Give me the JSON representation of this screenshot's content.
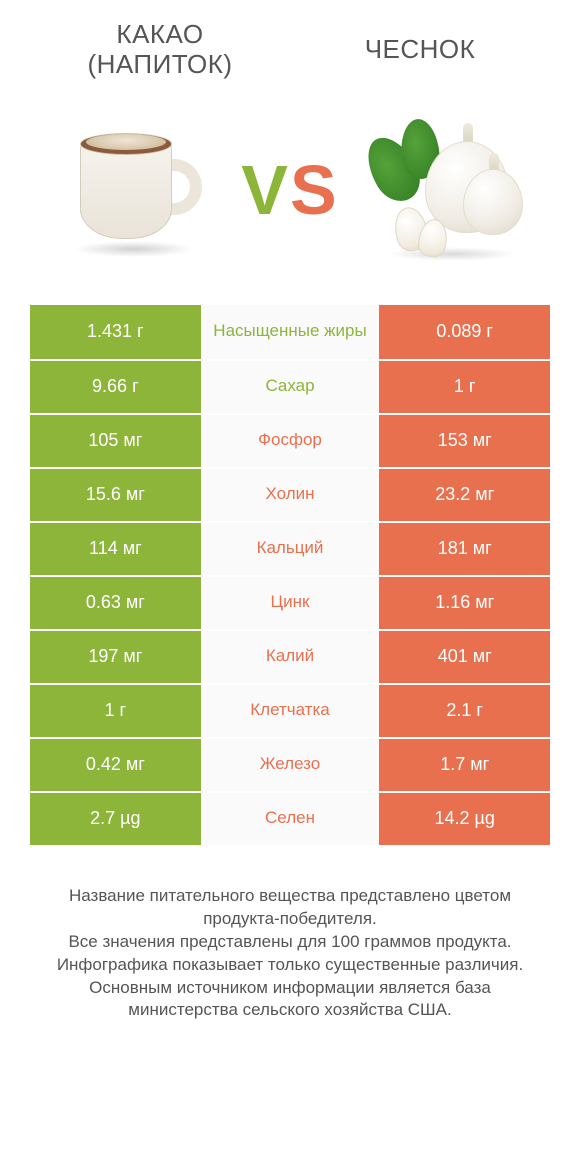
{
  "colors": {
    "left": "#8db53a",
    "right": "#e8704f",
    "mid_bg": "#fafafa",
    "text": "#555555",
    "cell_text": "#ffffff"
  },
  "title_left_line1": "КАКАО",
  "title_left_line2": "(НАПИТОК)",
  "title_right": "ЧЕСНОК",
  "vs_v": "V",
  "vs_s": "S",
  "rows": [
    {
      "left": "1.431 г",
      "mid": "Насыщенные жиры",
      "right": "0.089 г",
      "winner": "left"
    },
    {
      "left": "9.66 г",
      "mid": "Сахар",
      "right": "1 г",
      "winner": "left"
    },
    {
      "left": "105 мг",
      "mid": "Фосфор",
      "right": "153 мг",
      "winner": "right"
    },
    {
      "left": "15.6 мг",
      "mid": "Холин",
      "right": "23.2 мг",
      "winner": "right"
    },
    {
      "left": "114 мг",
      "mid": "Кальций",
      "right": "181 мг",
      "winner": "right"
    },
    {
      "left": "0.63 мг",
      "mid": "Цинк",
      "right": "1.16 мг",
      "winner": "right"
    },
    {
      "left": "197 мг",
      "mid": "Калий",
      "right": "401 мг",
      "winner": "right"
    },
    {
      "left": "1 г",
      "mid": "Клетчатка",
      "right": "2.1 г",
      "winner": "right"
    },
    {
      "left": "0.42 мг",
      "mid": "Железо",
      "right": "1.7 мг",
      "winner": "right"
    },
    {
      "left": "2.7 µg",
      "mid": "Селен",
      "right": "14.2 µg",
      "winner": "right"
    }
  ],
  "legend_lines": [
    "Название питательного вещества представлено цветом продукта-победителя.",
    "Все значения представлены для 100 граммов продукта.",
    "Инфографика показывает только существенные различия.",
    "Основным источником информации является база министерства сельского хозяйства США."
  ]
}
